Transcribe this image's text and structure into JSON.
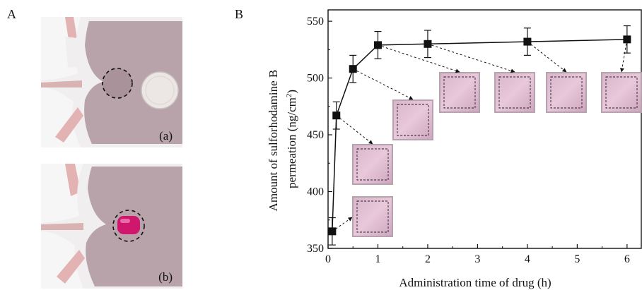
{
  "panels": {
    "left_letter": "A",
    "right_letter": "B",
    "photo_a_label": "(a)",
    "photo_b_label": "(b)"
  },
  "colors": {
    "skin": "#b7a3a9",
    "fur": "#f1eef0",
    "paw": "#e2b3b2",
    "dye": "#d0176e",
    "inset_pink": "#e4c0d6"
  },
  "chart_data": {
    "type": "line",
    "xlabel": "Administration time of drug (h)",
    "ylabel_line1": "Amount of sulforhodamine B",
    "ylabel_line2": "permeation (ng/cm",
    "ylabel_sup": "2",
    "ylabel_close": ")",
    "xlim": [
      0,
      6.3
    ],
    "ylim": [
      350,
      560
    ],
    "x_ticks": [
      "0",
      "1",
      "2",
      "3",
      "4",
      "5",
      "6"
    ],
    "y_ticks": [
      "350",
      "400",
      "450",
      "500",
      "550"
    ],
    "x_tick_values": [
      0,
      1,
      2,
      3,
      4,
      5,
      6
    ],
    "y_tick_values": [
      350,
      400,
      450,
      500,
      550
    ],
    "series": [
      {
        "x": [
          0.083,
          0.167,
          0.5,
          1,
          2,
          4,
          6
        ],
        "y": [
          365,
          467,
          508,
          529,
          530,
          532,
          534
        ],
        "err": [
          12,
          12,
          12,
          12,
          12,
          12,
          12
        ]
      }
    ],
    "grid": false,
    "markers": "square"
  }
}
